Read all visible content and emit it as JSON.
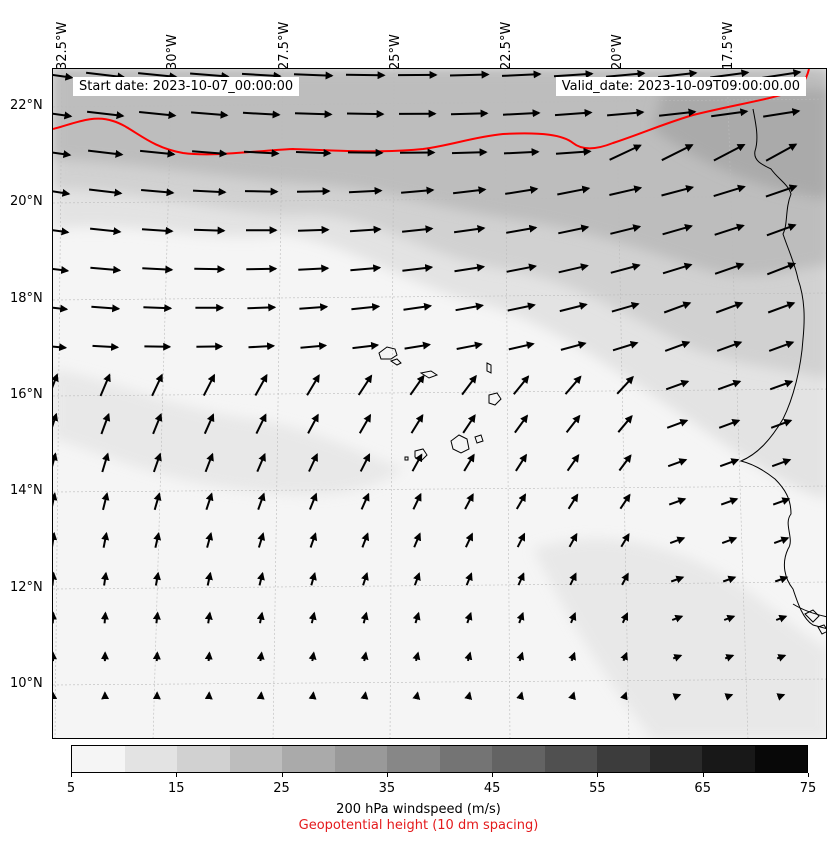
{
  "header": {
    "start_date": "Start date: 2023-10-07_00:00:00",
    "valid_date": "Valid_date: 2023-10-09T09:00:00.00"
  },
  "axes": {
    "lon_labels": [
      "32.5°W",
      "30°W",
      "27.5°W",
      "25°W",
      "22.5°W",
      "20°W",
      "17.5°W"
    ],
    "lat_labels": [
      "22°N",
      "20°N",
      "18°N",
      "16°N",
      "14°N",
      "12°N",
      "10°N"
    ]
  },
  "colorbar": {
    "ticks": [
      "5",
      "15",
      "25",
      "35",
      "45",
      "55",
      "65",
      "75"
    ],
    "colors": [
      "#f5f5f5",
      "#e3e3e3",
      "#d1d1d1",
      "#bdbdbd",
      "#aaaaaa",
      "#999999",
      "#878787",
      "#747474",
      "#636363",
      "#505050",
      "#3c3c3c",
      "#2a2a2a",
      "#181818",
      "#080808"
    ],
    "label": "200 hPa windspeed (m/s)",
    "sublabel": "Geopotential height (10 dm spacing)",
    "sublabel_color": "#e41a1c"
  },
  "contour_color": "#ff0000"
}
